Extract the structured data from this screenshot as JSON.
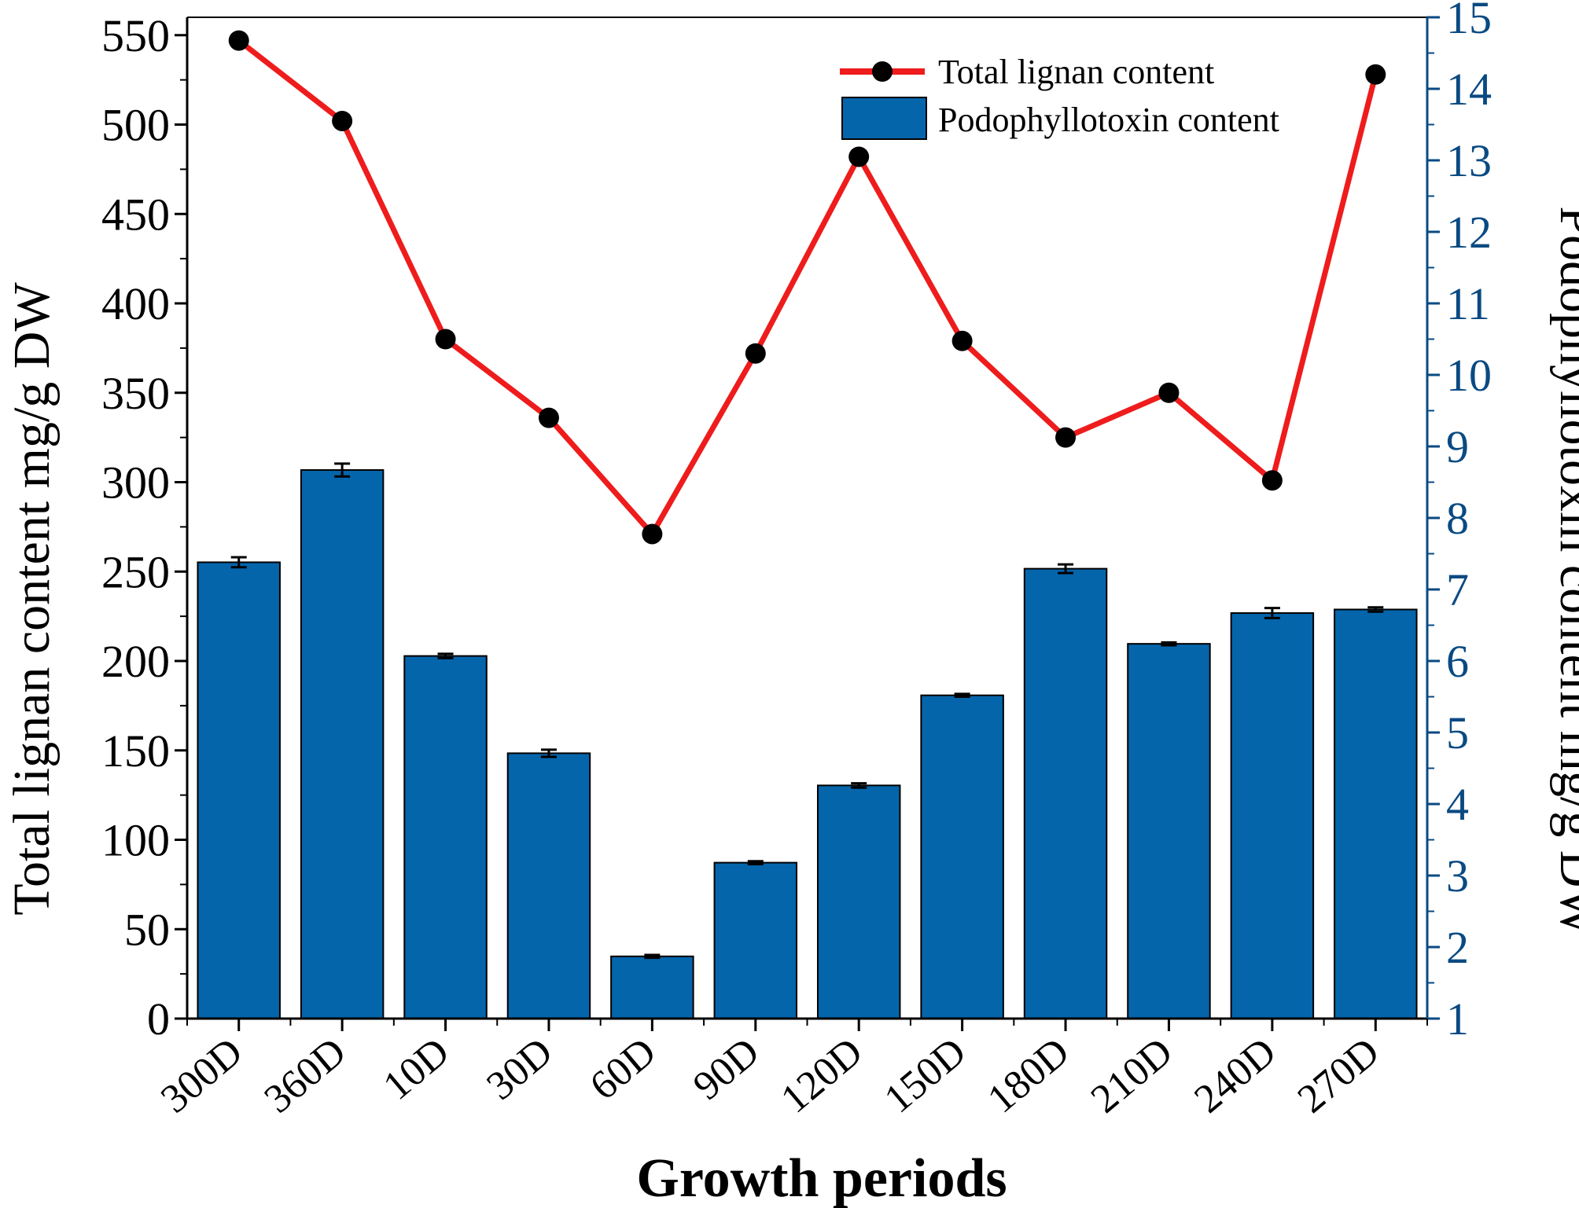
{
  "chart_data": {
    "type": "bar+line",
    "xlabel": "Growth periods",
    "ylabel_left": "Total lignan content mg/g DW",
    "ylabel_right": "Podophyllotoxin content mg/g DW",
    "categories": [
      "300D",
      "360D",
      "10D",
      "30D",
      "60D",
      "90D",
      "120D",
      "150D",
      "180D",
      "210D",
      "240D",
      "270D"
    ],
    "ylim_left": [
      0,
      560
    ],
    "yticks_left": [
      0,
      50,
      100,
      150,
      200,
      250,
      300,
      350,
      400,
      450,
      500,
      550
    ],
    "ylim_right": [
      1,
      15
    ],
    "yticks_right": [
      1,
      2,
      3,
      4,
      5,
      6,
      7,
      8,
      9,
      10,
      11,
      12,
      13,
      14,
      15
    ],
    "series": [
      {
        "name": "Podophyllotoxin content",
        "type": "bar",
        "axis": "right",
        "color": "#0565ab",
        "values": [
          7.38,
          8.67,
          6.07,
          4.71,
          1.87,
          3.18,
          4.26,
          5.52,
          7.29,
          6.24,
          6.67,
          6.72
        ],
        "errors": [
          0.07,
          0.09,
          0.03,
          0.05,
          0.02,
          0.02,
          0.03,
          0.02,
          0.06,
          0.02,
          0.07,
          0.03
        ]
      },
      {
        "name": "Total lignan content",
        "type": "line",
        "axis": "left",
        "color": "#ee1c1c",
        "marker_color": "#000000",
        "values": [
          547,
          502,
          380,
          336,
          271,
          372,
          482,
          379,
          325,
          350,
          301,
          528
        ]
      }
    ],
    "legend_position": "top-right",
    "right_axis_color": "#0a4a82"
  }
}
